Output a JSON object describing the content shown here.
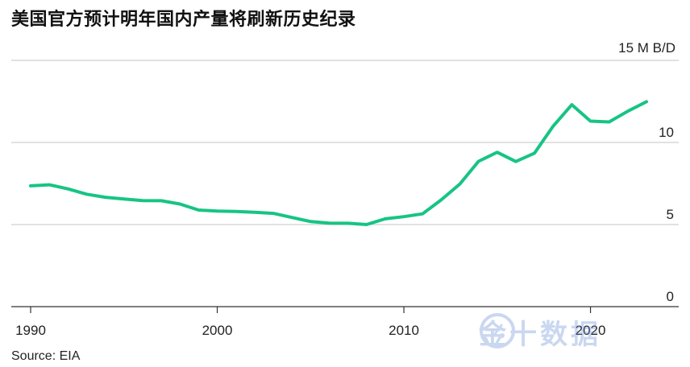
{
  "title": "美国官方预计明年国内产量将刷新历史纪录",
  "source": "Source: EIA",
  "watermark": "金十数据",
  "chart_data": {
    "type": "line",
    "title": "美国官方预计明年国内产量将刷新历史纪录",
    "unit_label": "15 M B/D",
    "x_ticks": [
      "1990",
      "2000",
      "2010",
      "2020"
    ],
    "y_ticks": [
      "0",
      "5",
      "10"
    ],
    "xlim": [
      1990,
      2024
    ],
    "ylim": [
      0,
      15
    ],
    "grid": true,
    "line_color": "#17c484",
    "series": [
      {
        "x": [
          1990,
          1991,
          1992,
          1993,
          1994,
          1995,
          1996,
          1997,
          1998,
          1999,
          2000,
          2001,
          2002,
          2003,
          2004,
          2005,
          2006,
          2007,
          2008,
          2009,
          2010,
          2011,
          2012,
          2013,
          2014,
          2015,
          2016,
          2017,
          2018,
          2019,
          2020,
          2021,
          2022,
          2023
        ],
        "values": [
          7.36,
          7.42,
          7.17,
          6.85,
          6.66,
          6.56,
          6.46,
          6.45,
          6.25,
          5.88,
          5.82,
          5.8,
          5.75,
          5.68,
          5.43,
          5.18,
          5.09,
          5.08,
          5.0,
          5.35,
          5.48,
          5.65,
          6.5,
          7.47,
          8.85,
          9.4,
          8.84,
          9.35,
          10.99,
          12.3,
          11.3,
          11.25,
          11.9,
          12.48
        ]
      }
    ]
  }
}
